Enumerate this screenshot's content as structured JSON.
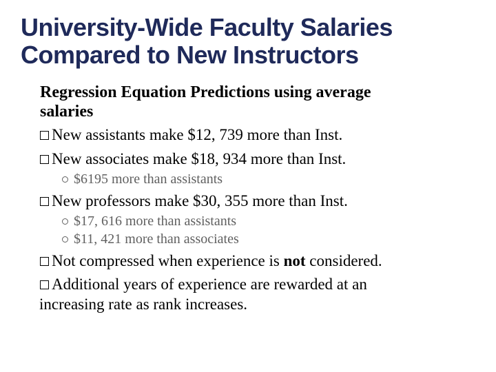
{
  "title_color": "#1f2a5a",
  "title_line1": "University-Wide Faculty Salaries",
  "title_line2": "Compared to New Instructors",
  "subtitle_line1": "Regression Equation Predictions using average",
  "subtitle_line2": "salaries",
  "bullets": {
    "b1": "New assistants make $12, 739 more than Inst.",
    "b2": "New associates make $18, 934 more than Inst.",
    "b2_sub1": "$6195 more than assistants",
    "b3": "New professors make $30, 355 more than Inst.",
    "b3_sub1": "$17, 616 more than assistants",
    "b3_sub2": "$11, 421 more than associates",
    "b4_pre": "Not compressed when experience is ",
    "b4_bold": "not",
    "b4_post": " considered.",
    "b5_line1": "Additional years of experience are rewarded at an",
    "b5_line2": "increasing rate as rank increases."
  },
  "text_color": "#000000",
  "subtext_color": "#606060",
  "background_color": "#ffffff",
  "title_fontsize": 36,
  "subtitle_fontsize": 24,
  "bullet_fontsize": 23,
  "subbullet_fontsize": 20
}
